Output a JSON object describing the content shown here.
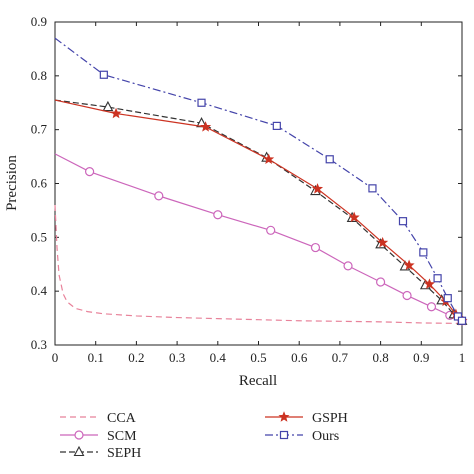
{
  "chart_data": {
    "type": "line",
    "xlabel": "Recall",
    "ylabel": "Precision",
    "xlim": [
      0,
      1
    ],
    "ylim": [
      0.3,
      0.9
    ],
    "x_ticks": [
      "0",
      "0.1",
      "0.2",
      "0.3",
      "0.4",
      "0.5",
      "0.6",
      "0.7",
      "0.8",
      "0.9",
      "1"
    ],
    "y_ticks": [
      "0.3",
      "0.4",
      "0.5",
      "0.6",
      "0.7",
      "0.8",
      "0.9"
    ],
    "grid": false,
    "legend_placement": "bottom",
    "series": [
      {
        "name": "CCA",
        "color": "#e8829a",
        "dash": "6,4",
        "marker": "none",
        "x": [
          0.0,
          0.005,
          0.01,
          0.02,
          0.03,
          0.05,
          0.08,
          0.12,
          0.2,
          0.3,
          0.4,
          0.5,
          0.6,
          0.7,
          0.8,
          0.9,
          1.0
        ],
        "y": [
          0.56,
          0.48,
          0.43,
          0.395,
          0.38,
          0.368,
          0.362,
          0.358,
          0.354,
          0.351,
          0.349,
          0.347,
          0.345,
          0.344,
          0.343,
          0.341,
          0.34
        ]
      },
      {
        "name": "SCM",
        "color": "#cc66bb",
        "dash": "",
        "marker": "circle",
        "x": [
          0.0,
          0.085,
          0.255,
          0.4,
          0.53,
          0.64,
          0.72,
          0.8,
          0.865,
          0.925,
          0.97,
          1.0
        ],
        "y": [
          0.655,
          0.622,
          0.577,
          0.542,
          0.513,
          0.481,
          0.447,
          0.417,
          0.392,
          0.371,
          0.355,
          0.345
        ]
      },
      {
        "name": "SEPH",
        "color": "#333333",
        "dash": "6,3",
        "marker": "triangle",
        "x": [
          0.0,
          0.13,
          0.36,
          0.52,
          0.64,
          0.73,
          0.8,
          0.86,
          0.91,
          0.95,
          0.98,
          1.0
        ],
        "y": [
          0.755,
          0.742,
          0.712,
          0.648,
          0.586,
          0.536,
          0.487,
          0.446,
          0.411,
          0.383,
          0.357,
          0.345
        ]
      },
      {
        "name": "GSPH",
        "color": "#cc3322",
        "dash": "",
        "marker": "star",
        "x": [
          0.0,
          0.15,
          0.37,
          0.525,
          0.645,
          0.735,
          0.805,
          0.87,
          0.92,
          0.96,
          0.985,
          1.0
        ],
        "y": [
          0.755,
          0.73,
          0.705,
          0.645,
          0.59,
          0.537,
          0.49,
          0.448,
          0.413,
          0.381,
          0.357,
          0.345
        ]
      },
      {
        "name": "Ours",
        "color": "#4444aa",
        "dash": "8,3,2,3",
        "marker": "square",
        "x": [
          0.0,
          0.12,
          0.36,
          0.545,
          0.675,
          0.78,
          0.855,
          0.905,
          0.94,
          0.965,
          0.99,
          1.0
        ],
        "y": [
          0.87,
          0.802,
          0.75,
          0.707,
          0.645,
          0.591,
          0.53,
          0.472,
          0.424,
          0.387,
          0.353,
          0.345
        ]
      }
    ]
  }
}
